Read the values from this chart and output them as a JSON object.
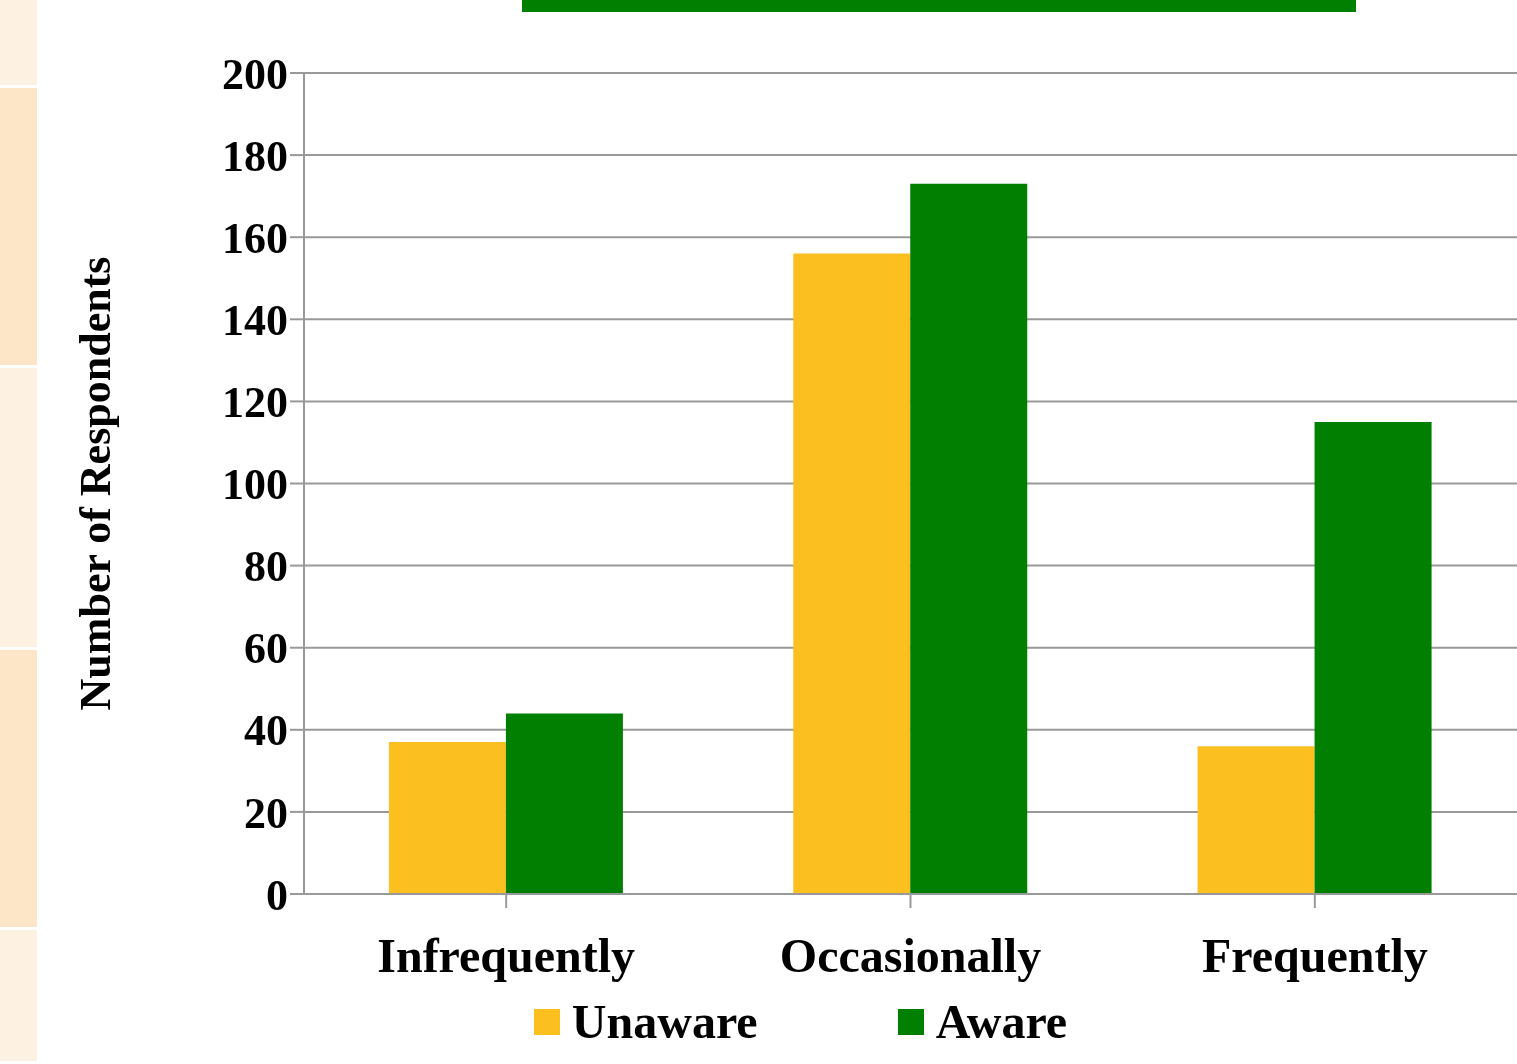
{
  "chart_data": {
    "type": "bar",
    "ylabel": "Number of Respondents",
    "categories": [
      "Infrequently",
      "Occasionally",
      "Frequently"
    ],
    "series": [
      {
        "name": "Unaware",
        "color": "#fbc020",
        "values": [
          37,
          156,
          36
        ]
      },
      {
        "name": "Aware",
        "color": "#007f00",
        "values": [
          44,
          173,
          115
        ]
      }
    ],
    "ylim": [
      0,
      200
    ],
    "yticks": [
      0,
      20,
      40,
      60,
      80,
      100,
      120,
      140,
      160,
      180,
      200
    ],
    "grid": "y",
    "legend": "bottom"
  }
}
